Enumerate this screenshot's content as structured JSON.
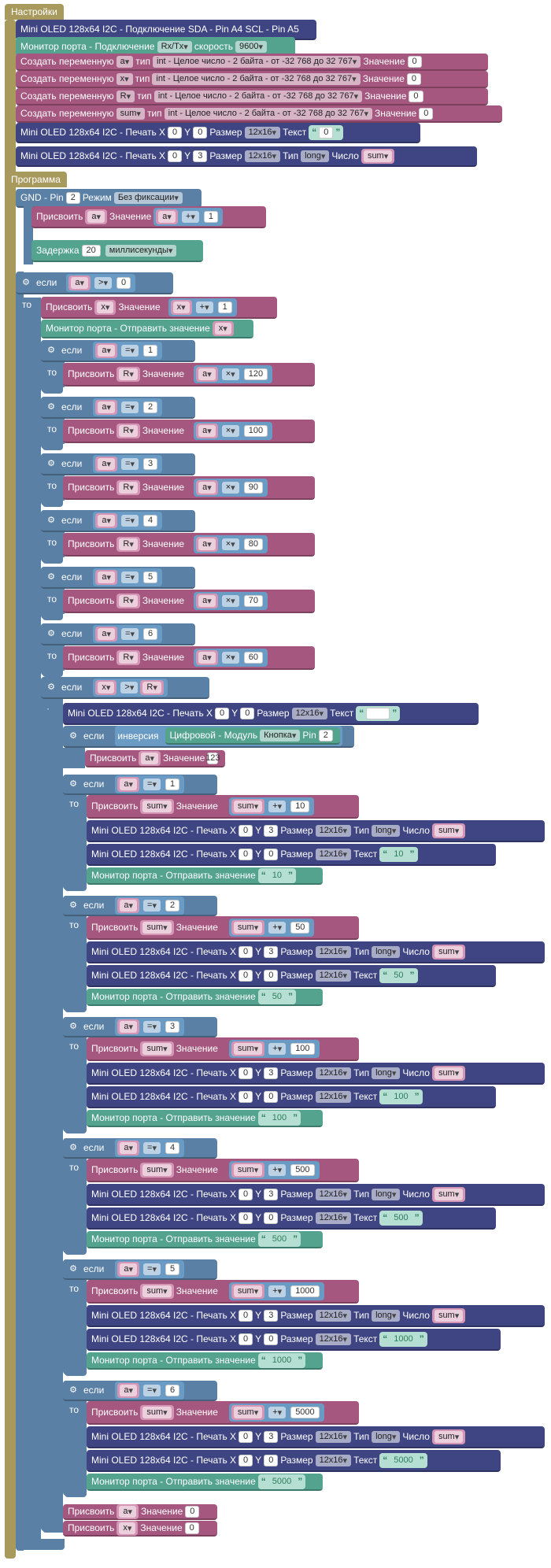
{
  "kw": {
    "if": "если",
    "then": "то",
    "value": "Значение",
    "assign": "Присвоить",
    "type": "тип",
    "create": "Создать переменную",
    "delay": "Задержка",
    "ms": "миллисекунды",
    "x": "X",
    "y": "Y",
    "size": "Размер",
    "text": "Текст",
    "num": "Число",
    "type2": "Тип",
    "monitor_send": "Монитор порта - Отправить значение",
    "oled_print": "Mini OLED 128x64 I2C - Печать X",
    "inv": "инверсия",
    "dig": "Цифровой - Модуль",
    "pin": "Pin",
    "int_type": "int - Целое число - 2 байта - от -32 768 до 32 767",
    "plus": "+",
    "times": "×",
    "eq": "=",
    "gt": ">",
    "long": "long",
    "sz": "12x16",
    "btn": "Кнопка"
  },
  "setup": {
    "title": "Настройки",
    "oled_conn": "Mini OLED 128x64 I2C - Подключение  SDA - Pin A4 SCL - Pin A5",
    "monitor_conn": "Монитор порта - Подключение",
    "rxtx": "Rx/Tx",
    "speed_label": "скорость",
    "speed": "9600",
    "vars": [
      {
        "name": "a",
        "init": "0"
      },
      {
        "name": "x",
        "init": "0"
      },
      {
        "name": "R",
        "init": "0"
      },
      {
        "name": "sum",
        "init": "0"
      }
    ],
    "print1": {
      "x": "0",
      "y": "0",
      "text": "0"
    },
    "print2": {
      "x": "0",
      "y": "3",
      "var": "sum"
    }
  },
  "program": {
    "title": "Программа",
    "gnd": "GND - Pin",
    "gnd_pin": "2",
    "mode_label": "Режим",
    "mode": "Без фиксации",
    "inc_a": "1",
    "delay": "20",
    "cond_a": "0",
    "inc_x": "1",
    "r_rules": [
      {
        "a": "1",
        "mult": "120"
      },
      {
        "a": "2",
        "mult": "100"
      },
      {
        "a": "3",
        "mult": "90"
      },
      {
        "a": "4",
        "mult": "80"
      },
      {
        "a": "5",
        "mult": "70"
      },
      {
        "a": "6",
        "mult": "60"
      }
    ],
    "print_blank": {
      "x": "0",
      "y": "0",
      "text": ""
    },
    "btn_pin": "2",
    "assign_123": "123",
    "sum_rules": [
      {
        "a": "1",
        "add": "10"
      },
      {
        "a": "2",
        "add": "50"
      },
      {
        "a": "3",
        "add": "100"
      },
      {
        "a": "4",
        "add": "500"
      },
      {
        "a": "5",
        "add": "1000"
      },
      {
        "a": "6",
        "add": "5000"
      }
    ],
    "reset_a": "0",
    "reset_x": "0",
    "p_x": "0",
    "p_y3": "3",
    "p_y0": "0"
  }
}
